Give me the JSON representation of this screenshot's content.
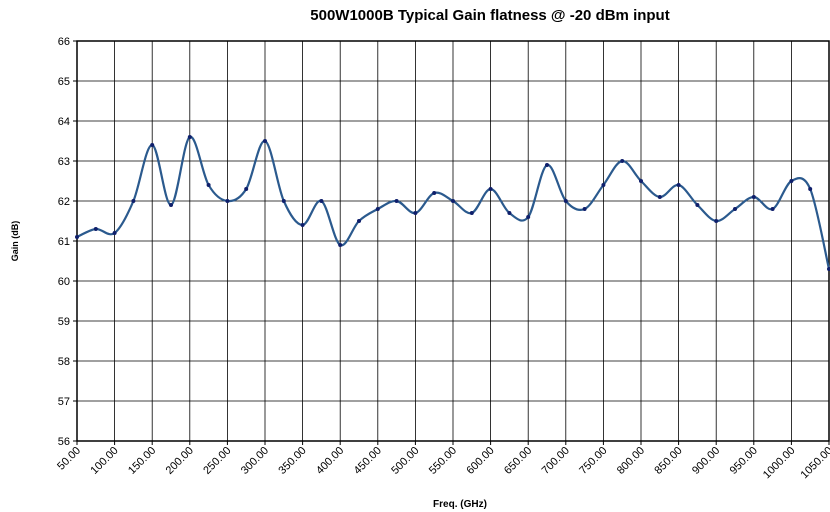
{
  "chart_data": {
    "type": "line",
    "title": "500W1000B Typical Gain flatness @ -20 dBm input",
    "x_label": "Freq. (GHz)",
    "y_label": "Gain (dB)",
    "x": [
      50,
      75,
      100,
      125,
      150,
      175,
      200,
      225,
      250,
      275,
      300,
      325,
      350,
      375,
      400,
      425,
      450,
      475,
      500,
      525,
      550,
      575,
      600,
      625,
      650,
      675,
      700,
      725,
      750,
      775,
      800,
      825,
      850,
      875,
      900,
      925,
      950,
      975,
      1000,
      1025,
      1050
    ],
    "series": [
      {
        "color": "#2b5a8e",
        "marker_color": "#0f1f6b",
        "values": [
          61.1,
          61.3,
          61.2,
          62.0,
          63.4,
          61.9,
          63.6,
          62.4,
          62.0,
          62.3,
          63.5,
          62.0,
          61.4,
          62.0,
          60.9,
          61.5,
          61.8,
          62.0,
          61.7,
          62.2,
          62.0,
          61.7,
          62.3,
          61.7,
          61.6,
          62.9,
          62.0,
          61.8,
          62.4,
          63.0,
          62.5,
          62.1,
          62.4,
          61.9,
          61.5,
          61.8,
          62.1,
          61.8,
          62.5,
          62.3,
          60.3
        ]
      }
    ],
    "xlim": [
      50,
      1050
    ],
    "xticks": [
      {
        "value": 50,
        "label": "50.00"
      },
      {
        "value": 100,
        "label": "100.00"
      },
      {
        "value": 150,
        "label": "150.00"
      },
      {
        "value": 200,
        "label": "200.00"
      },
      {
        "value": 250,
        "label": "250.00"
      },
      {
        "value": 300,
        "label": "300.00"
      },
      {
        "value": 350,
        "label": "350.00"
      },
      {
        "value": 400,
        "label": "400.00"
      },
      {
        "value": 450,
        "label": "450.00"
      },
      {
        "value": 500,
        "label": "500.00"
      },
      {
        "value": 550,
        "label": "550.00"
      },
      {
        "value": 600,
        "label": "600.00"
      },
      {
        "value": 650,
        "label": "650.00"
      },
      {
        "value": 700,
        "label": "700.00"
      },
      {
        "value": 750,
        "label": "750.00"
      },
      {
        "value": 800,
        "label": "800.00"
      },
      {
        "value": 850,
        "label": "850.00"
      },
      {
        "value": 900,
        "label": "900.00"
      },
      {
        "value": 950,
        "label": "950.00"
      },
      {
        "value": 1000,
        "label": "1000.00"
      },
      {
        "value": 1050,
        "label": "1050.00"
      }
    ],
    "ylim": [
      56,
      66
    ],
    "yticks": [
      56,
      57,
      58,
      59,
      60,
      61,
      62,
      63,
      64,
      65,
      66
    ],
    "grid": true
  }
}
